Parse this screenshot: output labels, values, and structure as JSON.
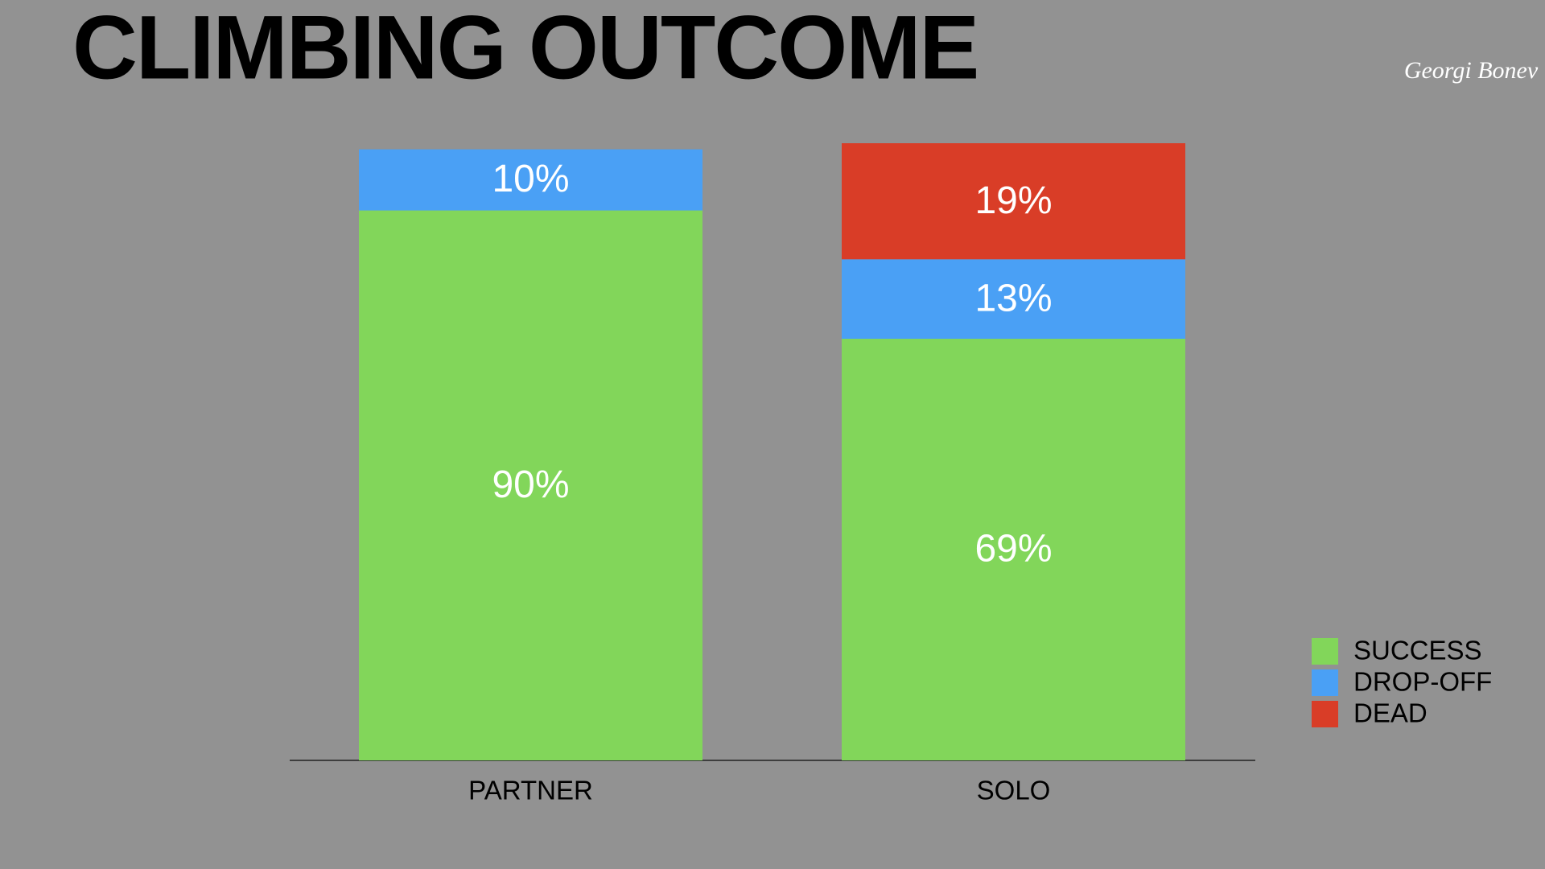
{
  "chart_data": {
    "type": "stacked_bar",
    "title": "CLIMBING OUTCOME",
    "signature": "Georgi Bonev",
    "categories": [
      "PARTNER",
      "SOLO"
    ],
    "series": [
      {
        "name": "SUCCESS",
        "color": "#82d65a",
        "values": [
          90,
          69
        ],
        "value_labels": [
          "90%",
          "69%"
        ]
      },
      {
        "name": "DROP-OFF",
        "color": "#4aa0f5",
        "values": [
          10,
          13
        ],
        "value_labels": [
          "10%",
          "13%"
        ]
      },
      {
        "name": "DEAD",
        "color": "#d93d27",
        "values": [
          null,
          19
        ],
        "value_labels": [
          null,
          "19%"
        ]
      }
    ],
    "legend": "right"
  }
}
